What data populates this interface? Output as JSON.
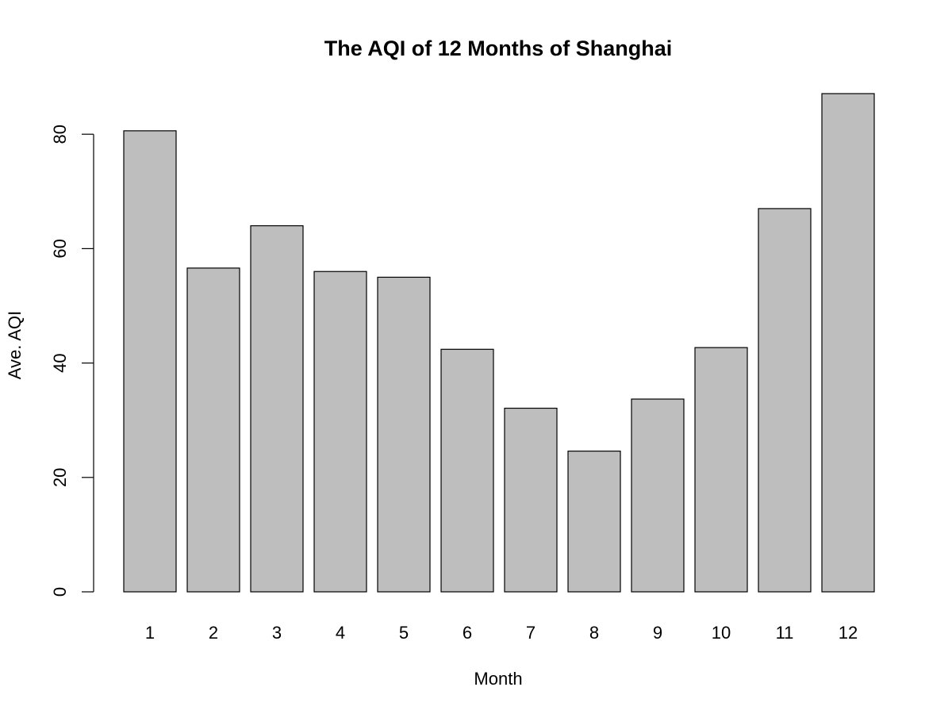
{
  "chart_data": {
    "type": "bar",
    "title": "The AQI of 12 Months of Shanghai",
    "xlabel": "Month",
    "ylabel": "Ave. AQI",
    "categories": [
      "1",
      "2",
      "3",
      "4",
      "5",
      "6",
      "7",
      "8",
      "9",
      "10",
      "11",
      "12"
    ],
    "values": [
      80.6,
      56.6,
      64.0,
      56.0,
      55.0,
      42.4,
      32.1,
      24.6,
      33.7,
      42.7,
      67.0,
      87.1
    ],
    "ylim": [
      0,
      87.1
    ],
    "yticks": [
      "0",
      "20",
      "40",
      "60",
      "80"
    ],
    "bar_color": "#bebebe",
    "grid": false,
    "legend": "none"
  }
}
